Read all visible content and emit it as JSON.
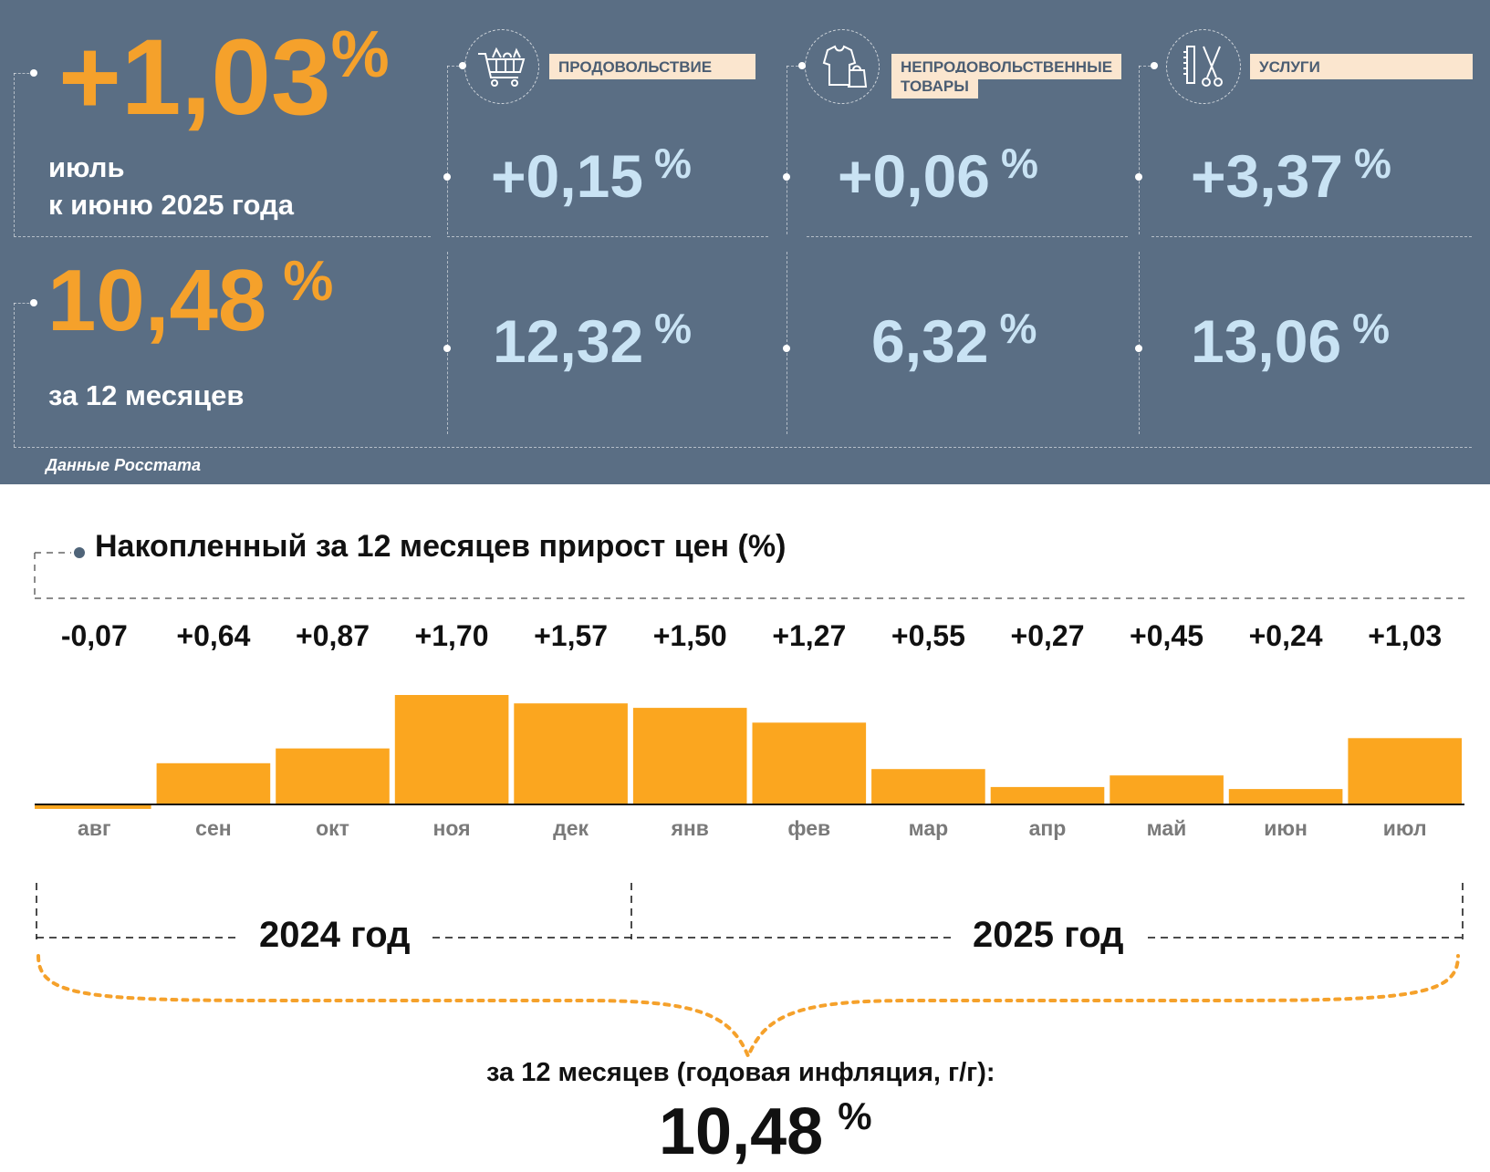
{
  "summary": {
    "monthly": {
      "value": "+1,03",
      "unit": "%",
      "caption_line1": "июль",
      "caption_line2": "к июню 2025 года"
    },
    "annual": {
      "value": "10,48",
      "unit": "%",
      "caption": "за 12 месяцев"
    },
    "source": "Данные Росстата"
  },
  "categories": [
    {
      "label": "ПРОДОВОЛЬСТВИЕ",
      "icon": "shopping-cart-icon",
      "monthly": "+0,15",
      "annual": "12,32",
      "unit": "%"
    },
    {
      "label_line1": "НЕПРОДОВОЛЬСТВЕННЫЕ",
      "label_line2": "ТОВАРЫ",
      "icon": "clothing-icon",
      "monthly": "+0,06",
      "annual": "6,32",
      "unit": "%"
    },
    {
      "label": "УСЛУГИ",
      "icon": "scissors-comb-icon",
      "monthly": "+3,37",
      "annual": "13,06",
      "unit": "%"
    }
  ],
  "chart_data": {
    "type": "bar",
    "title": "Накопленный за 12 месяцев прирост цен (%)",
    "categories": [
      "авг",
      "сен",
      "окт",
      "ноя",
      "дек",
      "янв",
      "фев",
      "мар",
      "апр",
      "май",
      "июн",
      "июл"
    ],
    "values": [
      -0.07,
      0.64,
      0.87,
      1.7,
      1.57,
      1.5,
      1.27,
      0.55,
      0.27,
      0.45,
      0.24,
      1.03
    ],
    "value_labels": [
      "-0,07",
      "+0,64",
      "+0,87",
      "+1,70",
      "+1,57",
      "+1,50",
      "+1,27",
      "+0,55",
      "+0,27",
      "+0,45",
      "+0,24",
      "+1,03"
    ],
    "years": [
      "2024 год",
      "2025 год"
    ],
    "ylim": [
      -0.07,
      1.7
    ],
    "grid": false,
    "bar_color": "#fba61f"
  },
  "footer": {
    "caption": "за 12 месяцев (годовая инфляция, г/г):",
    "value": "10,48",
    "unit": "%"
  },
  "colors": {
    "panel": "#5a6e84",
    "accent_orange": "#f5a12b",
    "value_blue": "#c9e3f4",
    "label_bg": "#fbe6cf"
  }
}
